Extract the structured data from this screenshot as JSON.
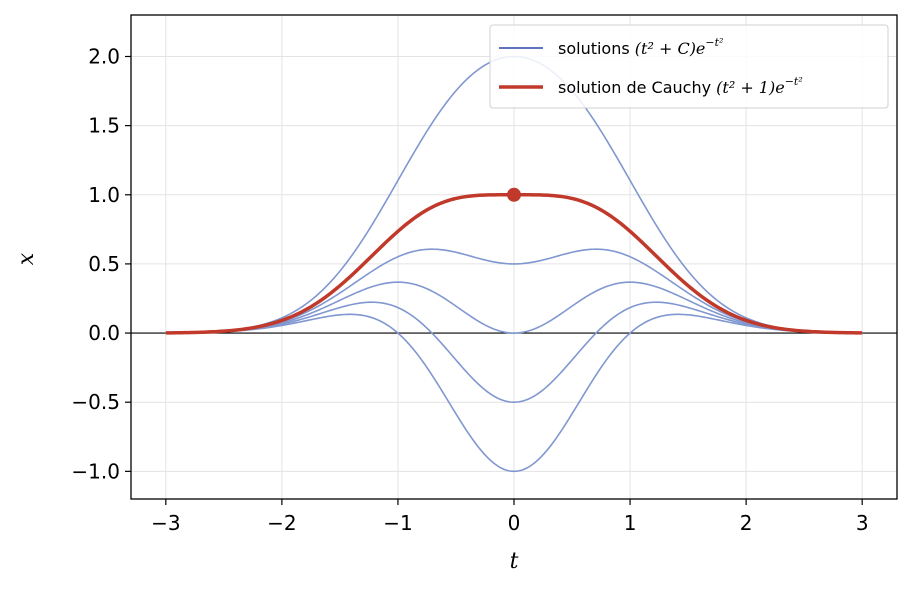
{
  "chart_data": {
    "type": "line",
    "xlabel": "t",
    "ylabel": "x",
    "xlim": [
      -3.3,
      3.3
    ],
    "ylim": [
      -1.2,
      2.3
    ],
    "xticks": [
      -3,
      -2,
      -1,
      0,
      1,
      2,
      3
    ],
    "yticks": [
      -1.0,
      -0.5,
      0.0,
      0.5,
      1.0,
      1.5,
      2.0
    ],
    "xtick_labels": [
      "−3",
      "−2",
      "−1",
      "0",
      "1",
      "2",
      "3"
    ],
    "ytick_labels": [
      "−1.0",
      "−0.5",
      "0.0",
      "0.5",
      "1.0",
      "1.5",
      "2.0"
    ],
    "grid": true,
    "legend_position": "top-right",
    "function": "(t^2 + C) e^(-t^2)",
    "t_range": [
      -3,
      3
    ],
    "family": {
      "label": "solutions (t² + C)e^{−t²}",
      "label_text": "solutions ",
      "label_math": "(t² + C)e",
      "label_sup": "−t²",
      "color": "#8097d0",
      "legend_color": "#2a45a8",
      "C_values": [
        -1,
        -0.5,
        0,
        0.5,
        2
      ]
    },
    "cauchy": {
      "label": "solution de Cauchy (t² + 1)e^{−t²}",
      "label_text": "solution de Cauchy ",
      "label_math": "(t² + 1)e",
      "label_sup": "−t²",
      "color": "#c0392b",
      "C": 1,
      "initial_point": {
        "t": 0,
        "x": 1
      }
    }
  }
}
